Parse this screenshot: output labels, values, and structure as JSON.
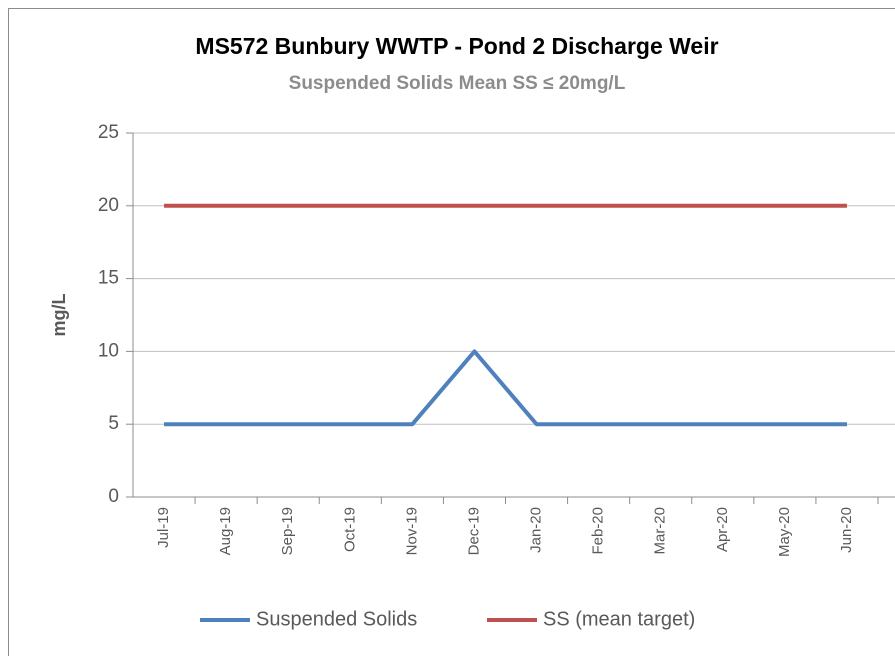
{
  "chart_data": {
    "type": "line",
    "title": "MS572 Bunbury WWTP - Pond 2 Discharge Weir",
    "subtitle": "Suspended Solids Mean SS ≤ 20mg/L",
    "y_label": "mg/L",
    "categories": [
      "Jul-19",
      "Aug-19",
      "Sep-19",
      "Oct-19",
      "Nov-19",
      "Dec-19",
      "Jan-20",
      "Feb-20",
      "Mar-20",
      "Apr-20",
      "May-20",
      "Jun-20"
    ],
    "series": [
      {
        "name": "Suspended Solids",
        "color": "#4f81bd",
        "values": [
          5,
          5,
          5,
          5,
          5,
          10,
          5,
          5,
          5,
          5,
          5,
          5
        ]
      },
      {
        "name": "SS (mean target)",
        "color": "#c0504d",
        "values": [
          20,
          20,
          20,
          20,
          20,
          20,
          20,
          20,
          20,
          20,
          20,
          20
        ]
      }
    ],
    "ylim": [
      0,
      25
    ],
    "yticks": [
      0,
      5,
      10,
      15,
      20,
      25
    ],
    "grid": true,
    "legend": "bottom"
  }
}
